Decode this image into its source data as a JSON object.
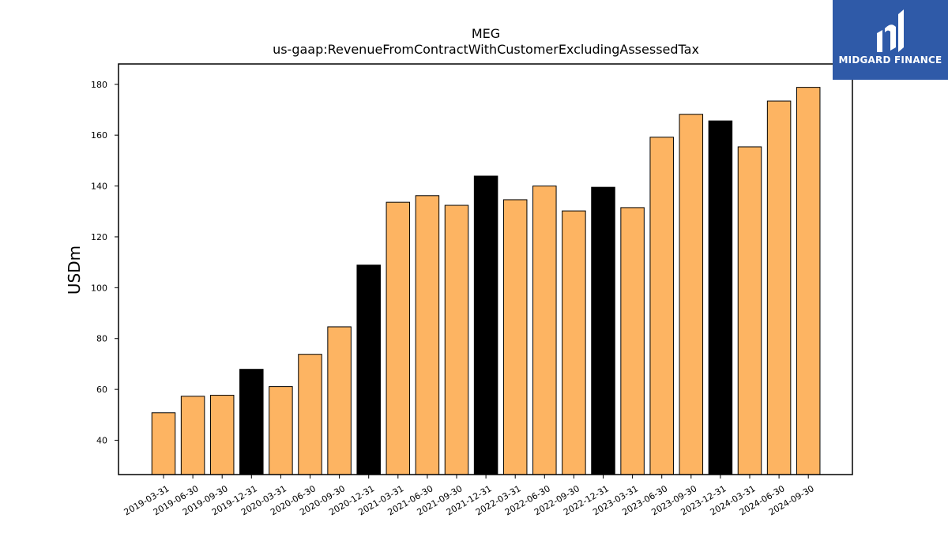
{
  "chart_data": {
    "type": "bar",
    "title": "MEG",
    "subtitle": "us-gaap:RevenueFromContractWithCustomerExcludingAssessedTax",
    "ylabel": "USDm",
    "xlabel": "",
    "ylim": [
      26.5,
      188
    ],
    "yticks": [
      40,
      60,
      80,
      100,
      120,
      140,
      160,
      180
    ],
    "grid": false,
    "categories": [
      "2019-03-31",
      "2019-06-30",
      "2019-09-30",
      "2019-12-31",
      "2020-03-31",
      "2020-06-30",
      "2020-09-30",
      "2020-12-31",
      "2021-03-31",
      "2021-06-30",
      "2021-09-30",
      "2021-12-31",
      "2022-03-31",
      "2022-06-30",
      "2022-09-30",
      "2022-12-31",
      "2023-03-31",
      "2023-06-30",
      "2023-09-30",
      "2023-12-31",
      "2024-03-31",
      "2024-06-30",
      "2024-09-30"
    ],
    "values": [
      50.8,
      57.3,
      57.7,
      67.9,
      61.1,
      73.8,
      84.6,
      108.9,
      133.6,
      136.2,
      132.4,
      143.9,
      134.6,
      140.0,
      130.2,
      139.5,
      131.5,
      159.2,
      168.2,
      165.6,
      155.4,
      173.4,
      178.8
    ],
    "colors": {
      "quarter": "#fdb462",
      "year_end": "#000000",
      "edge": "#000000"
    }
  },
  "logo": {
    "text": "MIDGARD FINANCE"
  }
}
